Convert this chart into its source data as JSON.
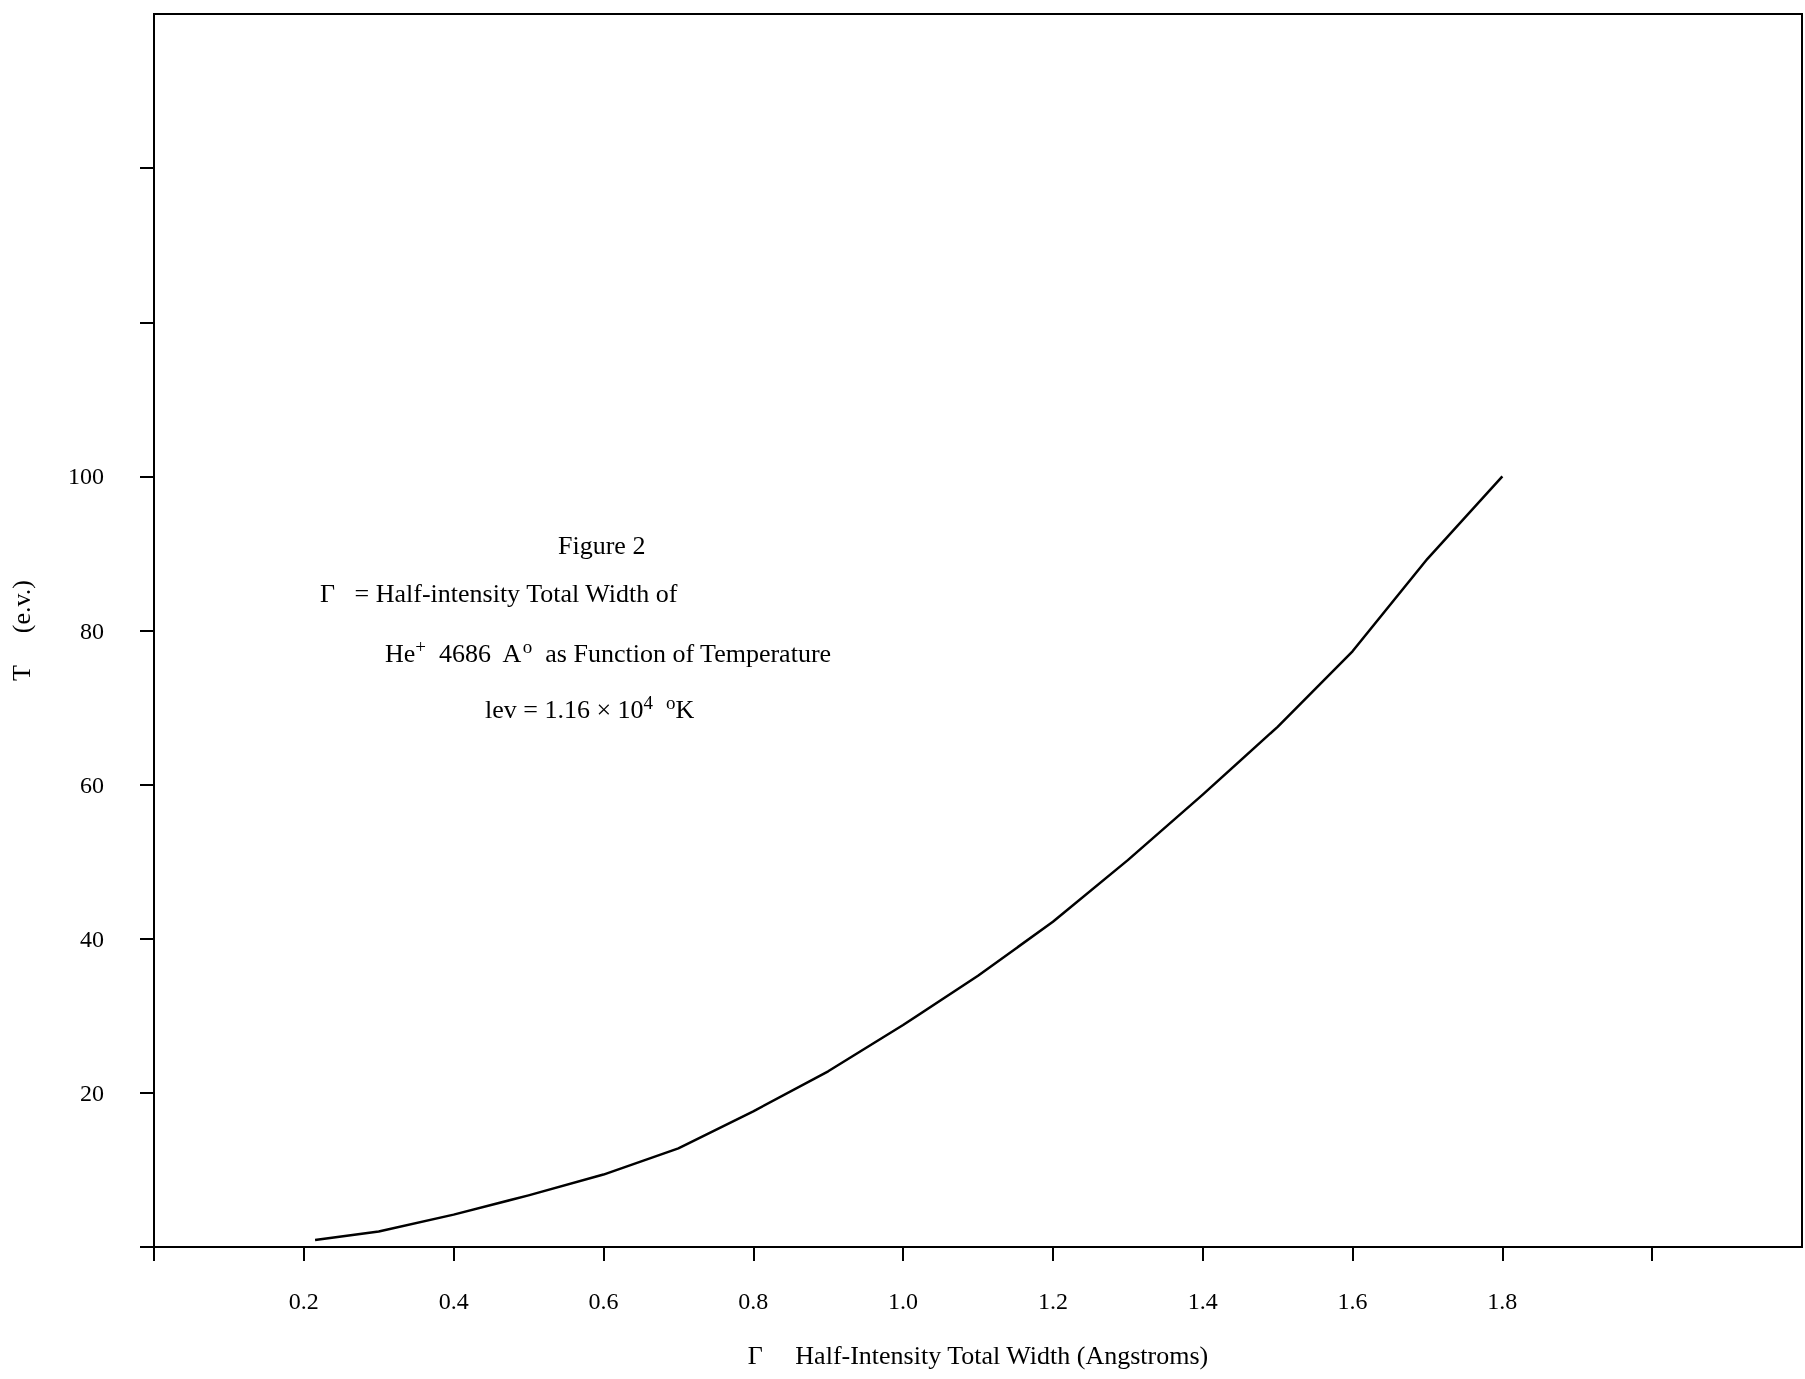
{
  "chart_data": {
    "type": "line",
    "title": "Figure 2",
    "xlabel": "Γ     Half-Intensity Total Width (Angstroms)",
    "ylabel": "T     (e.v.)",
    "annotations": [
      "Γ   = Half-intensity Total Width of",
      "He$^{+}$  4686  A$^{o}$  as Function of Temperature",
      "lev = 1.16 × 10$^{4}$  $^{o}$K"
    ],
    "x": [
      0.215,
      0.3,
      0.4,
      0.5,
      0.6,
      0.7,
      0.8,
      0.9,
      1.0,
      1.1,
      1.2,
      1.3,
      1.4,
      1.5,
      1.6,
      1.7,
      1.8
    ],
    "series": [
      {
        "color": "#000000",
        "values": [
          0.9,
          2.0,
          4.2,
          6.7,
          9.4,
          12.8,
          17.6,
          22.8,
          28.8,
          35.2,
          42.2,
          50.2,
          58.7,
          67.5,
          77.3,
          89.3,
          100
        ]
      }
    ],
    "xlim": [
      0,
      2.2
    ],
    "xticks": [
      {
        "value": 0,
        "label": null
      },
      0.2,
      0.4,
      0.6,
      0.8,
      {
        "value": 1,
        "label": "1.0"
      },
      1.2,
      1.4,
      1.6,
      1.8,
      {
        "value": 2.0,
        "label": null
      }
    ],
    "ylim": [
      0,
      160
    ],
    "yticks": [
      {
        "value": 0,
        "label": null
      },
      20,
      40,
      60,
      80,
      100,
      {
        "value": 120,
        "label": null
      },
      {
        "value": 140,
        "label": null
      }
    ],
    "grid": false,
    "marker": "none",
    "line_style": "solid"
  }
}
